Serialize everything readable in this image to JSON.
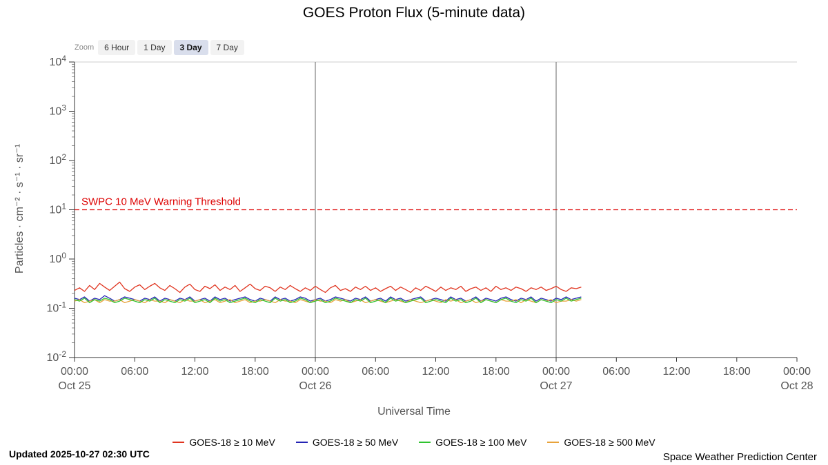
{
  "title": "GOES Proton Flux (5-minute data)",
  "zoom": {
    "label": "Zoom",
    "options": [
      {
        "label": "6 Hour",
        "selected": false
      },
      {
        "label": "1 Day",
        "selected": false
      },
      {
        "label": "3 Day",
        "selected": true
      },
      {
        "label": "7 Day",
        "selected": false
      }
    ]
  },
  "footer": {
    "updated": "Updated 2025-10-27 02:30 UTC",
    "credit": "Space Weather Prediction Center"
  },
  "chart_data": {
    "type": "line",
    "title": "GOES Proton Flux (5-minute data)",
    "xlabel": "Universal Time",
    "ylabel": "Particles · cm⁻² · s⁻¹ · sr⁻¹",
    "y_scale": "log",
    "ylim": [
      0.01,
      10000
    ],
    "grid": false,
    "legend_position": "bottom",
    "y_ticks": [
      {
        "value": 10000,
        "base": "10",
        "exp": "4"
      },
      {
        "value": 1000,
        "base": "10",
        "exp": "3"
      },
      {
        "value": 100,
        "base": "10",
        "exp": "2"
      },
      {
        "value": 10,
        "base": "10",
        "exp": "1"
      },
      {
        "value": 1,
        "base": "10",
        "exp": "0"
      },
      {
        "value": 0.1,
        "base": "10",
        "exp": "-1"
      },
      {
        "value": 0.01,
        "base": "10",
        "exp": "-2"
      }
    ],
    "x_range_hours": [
      0,
      72
    ],
    "x_tick_step_hours": 6,
    "x_time_labels": [
      "00:00",
      "06:00",
      "12:00",
      "18:00"
    ],
    "x_date_labels": [
      {
        "hour": 0,
        "label": "Oct 25"
      },
      {
        "hour": 24,
        "label": "Oct 26"
      },
      {
        "hour": 48,
        "label": "Oct 27"
      },
      {
        "hour": 72,
        "label": "Oct 28"
      }
    ],
    "day_boundary_hours": [
      24,
      48
    ],
    "threshold": {
      "value": 10,
      "label": "SWPC 10 MeV Warning Threshold",
      "color": "#dd0000"
    },
    "series_x_start_hour": 0,
    "series_x_step_hours": 0.5,
    "series": [
      {
        "name": "GOES-18 ≥ 10 MeV",
        "color": "#e0341f",
        "values": [
          0.23,
          0.26,
          0.22,
          0.29,
          0.24,
          0.32,
          0.27,
          0.23,
          0.28,
          0.34,
          0.25,
          0.22,
          0.27,
          0.3,
          0.24,
          0.28,
          0.32,
          0.26,
          0.23,
          0.29,
          0.25,
          0.21,
          0.27,
          0.31,
          0.24,
          0.22,
          0.28,
          0.25,
          0.3,
          0.23,
          0.27,
          0.24,
          0.29,
          0.22,
          0.26,
          0.31,
          0.25,
          0.23,
          0.28,
          0.26,
          0.22,
          0.27,
          0.24,
          0.29,
          0.25,
          0.22,
          0.26,
          0.23,
          0.28,
          0.24,
          0.21,
          0.26,
          0.29,
          0.23,
          0.25,
          0.22,
          0.27,
          0.24,
          0.28,
          0.23,
          0.26,
          0.22,
          0.25,
          0.28,
          0.23,
          0.27,
          0.24,
          0.21,
          0.26,
          0.23,
          0.28,
          0.25,
          0.22,
          0.27,
          0.23,
          0.26,
          0.24,
          0.28,
          0.22,
          0.25,
          0.27,
          0.23,
          0.26,
          0.22,
          0.28,
          0.24,
          0.26,
          0.23,
          0.27,
          0.25,
          0.22,
          0.26,
          0.24,
          0.27,
          0.23,
          0.25,
          0.28,
          0.24,
          0.22,
          0.26,
          0.25,
          0.27
        ]
      },
      {
        "name": "GOES-18 ≥ 50 MeV",
        "color": "#2424b4",
        "values": [
          0.16,
          0.15,
          0.17,
          0.14,
          0.16,
          0.15,
          0.18,
          0.16,
          0.14,
          0.15,
          0.17,
          0.16,
          0.15,
          0.14,
          0.16,
          0.15,
          0.17,
          0.14,
          0.16,
          0.15,
          0.14,
          0.16,
          0.15,
          0.17,
          0.14,
          0.15,
          0.16,
          0.14,
          0.17,
          0.15,
          0.16,
          0.14,
          0.15,
          0.16,
          0.17,
          0.15,
          0.14,
          0.16,
          0.15,
          0.14,
          0.17,
          0.15,
          0.16,
          0.14,
          0.15,
          0.17,
          0.16,
          0.14,
          0.15,
          0.16,
          0.14,
          0.15,
          0.17,
          0.16,
          0.15,
          0.14,
          0.16,
          0.15,
          0.17,
          0.14,
          0.15,
          0.16,
          0.14,
          0.17,
          0.15,
          0.16,
          0.14,
          0.15,
          0.16,
          0.17,
          0.14,
          0.15,
          0.16,
          0.15,
          0.14,
          0.17,
          0.15,
          0.16,
          0.14,
          0.15,
          0.17,
          0.14,
          0.16,
          0.15,
          0.14,
          0.16,
          0.17,
          0.15,
          0.14,
          0.16,
          0.15,
          0.17,
          0.14,
          0.16,
          0.15,
          0.14,
          0.16,
          0.15,
          0.17,
          0.15,
          0.16,
          0.17
        ]
      },
      {
        "name": "GOES-18 ≥ 100 MeV",
        "color": "#2fc32f",
        "values": [
          0.15,
          0.14,
          0.16,
          0.13,
          0.15,
          0.14,
          0.16,
          0.15,
          0.13,
          0.14,
          0.16,
          0.15,
          0.14,
          0.13,
          0.15,
          0.14,
          0.16,
          0.13,
          0.15,
          0.14,
          0.13,
          0.15,
          0.14,
          0.16,
          0.13,
          0.14,
          0.15,
          0.13,
          0.16,
          0.14,
          0.15,
          0.13,
          0.14,
          0.15,
          0.16,
          0.14,
          0.13,
          0.15,
          0.14,
          0.13,
          0.16,
          0.14,
          0.15,
          0.13,
          0.14,
          0.16,
          0.15,
          0.13,
          0.14,
          0.15,
          0.13,
          0.14,
          0.16,
          0.15,
          0.14,
          0.13,
          0.15,
          0.14,
          0.16,
          0.13,
          0.14,
          0.15,
          0.13,
          0.16,
          0.14,
          0.15,
          0.13,
          0.14,
          0.15,
          0.16,
          0.13,
          0.14,
          0.15,
          0.14,
          0.13,
          0.16,
          0.14,
          0.15,
          0.13,
          0.14,
          0.16,
          0.13,
          0.15,
          0.14,
          0.13,
          0.15,
          0.16,
          0.14,
          0.13,
          0.15,
          0.14,
          0.16,
          0.13,
          0.15,
          0.14,
          0.13,
          0.15,
          0.14,
          0.16,
          0.14,
          0.15,
          0.16
        ]
      },
      {
        "name": "GOES-18 ≥ 500 MeV",
        "color": "#e8a33b",
        "values": [
          0.14,
          0.15,
          0.13,
          0.14,
          0.15,
          0.13,
          0.15,
          0.14,
          0.14,
          0.15,
          0.13,
          0.14,
          0.15,
          0.14,
          0.13,
          0.15,
          0.14,
          0.14,
          0.13,
          0.15,
          0.14,
          0.13,
          0.15,
          0.14,
          0.14,
          0.15,
          0.13,
          0.14,
          0.15,
          0.13,
          0.14,
          0.15,
          0.13,
          0.14,
          0.15,
          0.13,
          0.14,
          0.14,
          0.15,
          0.14,
          0.13,
          0.15,
          0.14,
          0.14,
          0.13,
          0.15,
          0.14,
          0.13,
          0.15,
          0.14,
          0.14,
          0.13,
          0.15,
          0.14,
          0.15,
          0.13,
          0.14,
          0.15,
          0.13,
          0.14,
          0.15,
          0.14,
          0.13,
          0.14,
          0.15,
          0.14,
          0.13,
          0.15,
          0.14,
          0.13,
          0.14,
          0.15,
          0.14,
          0.13,
          0.15,
          0.14,
          0.15,
          0.13,
          0.14,
          0.15,
          0.13,
          0.14,
          0.15,
          0.14,
          0.13,
          0.15,
          0.14,
          0.14,
          0.15,
          0.13,
          0.15,
          0.14,
          0.13,
          0.15,
          0.14,
          0.15,
          0.13,
          0.14,
          0.14,
          0.15,
          0.14,
          0.15
        ]
      }
    ]
  }
}
